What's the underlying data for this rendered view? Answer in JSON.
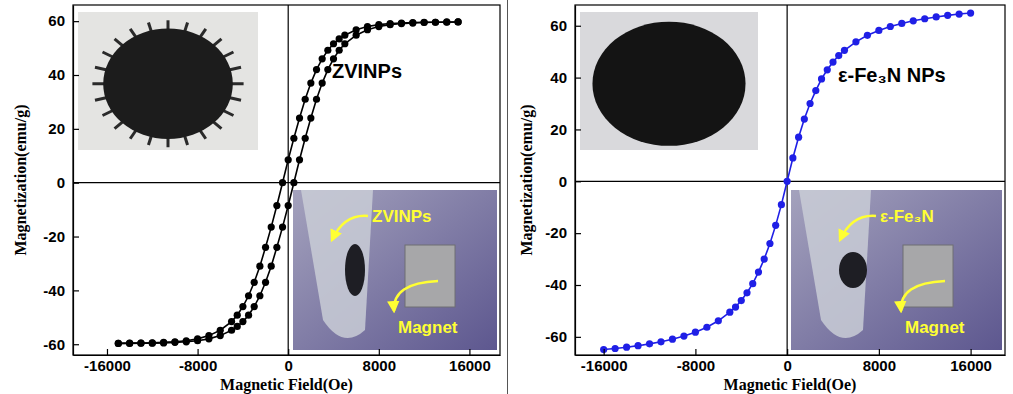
{
  "chart_data": [
    {
      "type": "line",
      "title": "ZVINPs",
      "xlabel": "Magnetic Field(Oe)",
      "ylabel": "Magnetization(emu/g)",
      "annotations": [
        "ZVINPs",
        "Magnet"
      ],
      "x": [
        -15000,
        -14000,
        -13000,
        -12000,
        -11000,
        -10000,
        -9000,
        -8000,
        -7000,
        -6000,
        -5000,
        -4500,
        -4000,
        -3500,
        -3000,
        -2500,
        -2000,
        -1500,
        -1000,
        -500,
        0,
        500,
        1000,
        1500,
        2000,
        2500,
        3000,
        3500,
        4000,
        4500,
        5000,
        6000,
        7000,
        8000,
        9000,
        10000,
        11000,
        12000,
        13000,
        14000,
        15000
      ],
      "series": [
        {
          "color": "#000000",
          "marker": "circle",
          "line_style": "solid",
          "values": [
            -59.7,
            -59.6,
            -59.6,
            -59.5,
            -59.3,
            -59.1,
            -58.7,
            -58.0,
            -56.8,
            -54.8,
            -51.6,
            -49.2,
            -46.0,
            -42.0,
            -37.0,
            -31.0,
            -24.0,
            -16.5,
            -8.5,
            0,
            8.5,
            16.5,
            24.0,
            31.0,
            37.0,
            42.0,
            46.0,
            49.2,
            51.6,
            53.4,
            54.8,
            56.8,
            58.0,
            58.7,
            59.1,
            59.3,
            59.5,
            59.6,
            59.6,
            59.7,
            59.7
          ]
        },
        {
          "color": "#000000",
          "marker": "circle",
          "line_style": "solid",
          "values": [
            -59.7,
            -59.7,
            -59.6,
            -59.6,
            -59.5,
            -59.3,
            -59.1,
            -58.7,
            -58.0,
            -56.8,
            -54.8,
            -53.4,
            -51.6,
            -49.2,
            -46.0,
            -42.0,
            -37.0,
            -31.0,
            -24.0,
            -16.5,
            -8.5,
            0,
            8.5,
            16.5,
            24.0,
            31.0,
            37.0,
            42.0,
            46.0,
            49.2,
            51.6,
            54.8,
            56.8,
            58.0,
            58.7,
            59.1,
            59.3,
            59.5,
            59.6,
            59.6,
            59.7
          ]
        }
      ],
      "xlim": [
        -19000,
        18700
      ],
      "ylim": [
        -64,
        66
      ],
      "xticks": [
        -16000,
        -8000,
        0,
        8000,
        16000
      ],
      "yticks": [
        -60,
        -40,
        -20,
        0,
        20,
        40,
        60
      ],
      "grid": false
    },
    {
      "type": "line",
      "title": "ε-Fe₃N NPs",
      "xlabel": "Magnetic Field(Oe)",
      "ylabel": "Magnetization(emu/g)",
      "annotations": [
        "ε-Fe₃N",
        "Magnet"
      ],
      "x": [
        -16000,
        -15000,
        -14000,
        -13000,
        -12000,
        -11000,
        -10000,
        -9000,
        -8000,
        -7000,
        -6000,
        -5000,
        -4500,
        -4000,
        -3500,
        -3000,
        -2500,
        -2000,
        -1500,
        -1000,
        -500,
        0,
        500,
        1000,
        1500,
        2000,
        2500,
        3000,
        3500,
        4000,
        4500,
        5000,
        6000,
        7000,
        8000,
        9000,
        10000,
        11000,
        12000,
        13000,
        14000,
        15000,
        16000
      ],
      "series": [
        {
          "color": "#1f1fe6",
          "marker": "circle",
          "line_style": "solid",
          "values": [
            -64.9,
            -64.5,
            -64.0,
            -63.4,
            -62.7,
            -61.9,
            -60.9,
            -59.7,
            -58.2,
            -56.3,
            -53.8,
            -50.5,
            -48.5,
            -46.0,
            -43.0,
            -39.5,
            -35.0,
            -30.0,
            -24.0,
            -17.0,
            -9.0,
            0,
            9.0,
            17.0,
            24.0,
            30.0,
            35.0,
            39.5,
            43.0,
            46.0,
            48.5,
            50.5,
            53.8,
            56.3,
            58.2,
            59.7,
            60.9,
            61.9,
            62.7,
            63.4,
            64.0,
            64.5,
            64.9
          ]
        }
      ],
      "xlim": [
        -18500,
        19000
      ],
      "ylim": [
        -67,
        68
      ],
      "xticks": [
        -16000,
        -8000,
        0,
        8000,
        16000
      ],
      "yticks": [
        -60,
        -40,
        -20,
        0,
        20,
        40,
        60
      ],
      "grid": false
    }
  ]
}
